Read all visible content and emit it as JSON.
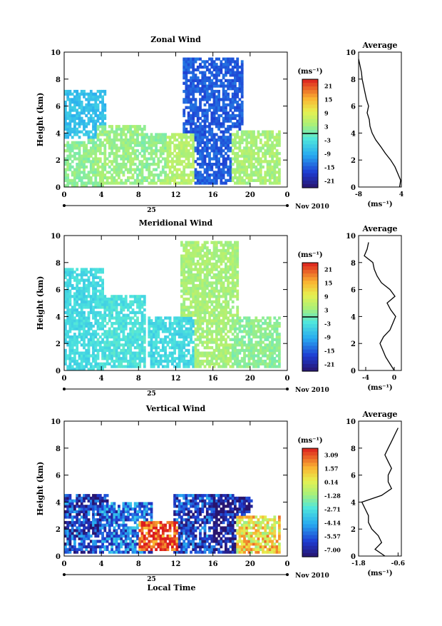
{
  "figure": {
    "xlabel": "Local Time",
    "date_label": "Nov 2010",
    "day_label": "25",
    "avg_title": "Average",
    "unit_label": "(ms⁻¹)",
    "ylabel": "Height (km)"
  },
  "chart_data": [
    {
      "type": "heatmap",
      "title": "Zonal Wind",
      "xlabel": "",
      "ylabel": "Height (km)",
      "xlim": [
        0,
        24
      ],
      "xticks": [
        "0",
        "4",
        "8",
        "12",
        "16",
        "20",
        "0"
      ],
      "ylim": [
        0,
        10
      ],
      "yticks": [
        "0",
        "2",
        "4",
        "6",
        "8",
        "10"
      ],
      "colorbar": {
        "label": "(ms⁻¹)",
        "ticks": [
          "21",
          "15",
          "9",
          "3",
          "-3",
          "-9",
          "-15",
          "-21"
        ],
        "range": [
          -24,
          24
        ],
        "zero_line": true
      },
      "description_points": [
        {
          "x": 1.0,
          "y0": 0.0,
          "y1": 3.3,
          "value": 2
        },
        {
          "x": 1.2,
          "y0": 3.5,
          "y1": 7.2,
          "value": -7
        },
        {
          "x": 5.5,
          "y0": 0.2,
          "y1": 4.5,
          "value": 3
        },
        {
          "x": 9.5,
          "y0": 0.3,
          "y1": 4.0,
          "value": 2
        },
        {
          "x": 12.0,
          "y0": 0.2,
          "y1": 4.0,
          "value": 5
        },
        {
          "x": 15.8,
          "y0": 0.2,
          "y1": 9.5,
          "value": -15
        },
        {
          "x": 20.0,
          "y0": 0.2,
          "y1": 4.2,
          "value": 4
        }
      ],
      "average_profile": {
        "xlim": [
          -8,
          4
        ],
        "xticks": [
          "-8",
          "4"
        ],
        "xlabel": "(ms⁻¹)",
        "height": [
          0.0,
          0.5,
          1.0,
          1.5,
          2.0,
          2.5,
          3.0,
          3.5,
          4.0,
          4.5,
          5.0,
          5.5,
          6.0,
          6.5,
          7.0,
          7.5,
          8.0,
          8.5,
          9.0,
          9.5
        ],
        "value": [
          3.5,
          3.8,
          3.0,
          2.2,
          1.0,
          -0.5,
          -1.8,
          -3.2,
          -4.2,
          -4.8,
          -5.0,
          -5.6,
          -5.2,
          -5.8,
          -6.2,
          -6.6,
          -7.0,
          -7.2,
          -7.6,
          -8.0
        ]
      }
    },
    {
      "type": "heatmap",
      "title": "Meridional Wind",
      "xlabel": "",
      "ylabel": "Height (km)",
      "xlim": [
        0,
        24
      ],
      "xticks": [
        "0",
        "4",
        "8",
        "12",
        "16",
        "20",
        "0"
      ],
      "ylim": [
        0,
        10
      ],
      "yticks": [
        "0",
        "2",
        "4",
        "6",
        "8",
        "10"
      ],
      "colorbar": {
        "label": "(ms⁻¹)",
        "ticks": [
          "21",
          "15",
          "9",
          "3",
          "-3",
          "-9",
          "-15",
          "-21"
        ],
        "range": [
          -24,
          24
        ],
        "zero_line": true
      },
      "description_points": [
        {
          "x": 1.0,
          "y0": 0.0,
          "y1": 7.5,
          "value": -4
        },
        {
          "x": 5.5,
          "y0": 0.1,
          "y1": 5.5,
          "value": -3
        },
        {
          "x": 12.0,
          "y0": 0.1,
          "y1": 4.0,
          "value": -4
        },
        {
          "x": 15.5,
          "y0": 0.1,
          "y1": 9.5,
          "value": 4
        },
        {
          "x": 20.0,
          "y0": 0.1,
          "y1": 4.0,
          "value": 2
        }
      ],
      "average_profile": {
        "xlim": [
          -5,
          1
        ],
        "xticks": [
          "-4",
          "0"
        ],
        "xlabel": "(ms⁻¹)",
        "height": [
          0.0,
          0.5,
          1.0,
          1.5,
          2.0,
          2.5,
          3.0,
          3.5,
          4.0,
          4.5,
          5.0,
          5.5,
          6.0,
          6.5,
          7.0,
          7.5,
          8.0,
          8.5,
          9.0,
          9.5
        ],
        "value": [
          0.0,
          -0.6,
          -1.2,
          -1.6,
          -2.0,
          -1.5,
          -0.6,
          -0.2,
          0.2,
          -0.5,
          -1.0,
          0.1,
          -0.6,
          -1.8,
          -2.4,
          -2.8,
          -3.0,
          -4.2,
          -3.8,
          -3.6
        ]
      }
    },
    {
      "type": "heatmap",
      "title": "Vertical Wind",
      "xlabel": "Local Time",
      "ylabel": "Height (km)",
      "xlim": [
        0,
        24
      ],
      "xticks": [
        "0",
        "4",
        "8",
        "12",
        "16",
        "20",
        "0"
      ],
      "ylim": [
        0,
        10
      ],
      "yticks": [
        "0",
        "2",
        "4",
        "6",
        "8",
        "10"
      ],
      "colorbar": {
        "label": "(ms⁻¹)",
        "ticks": [
          "3.09",
          "1.57",
          "0.14",
          "-1.28",
          "-2.71",
          "-4.14",
          "-5.57",
          "-7.00"
        ],
        "range": [
          -7.5,
          3.5
        ],
        "zero_line": false
      },
      "description_points": [
        {
          "x": 1.5,
          "y0": 0.1,
          "y1": 4.5,
          "value": -6
        },
        {
          "x": 6.2,
          "y0": 0.1,
          "y1": 4.0,
          "value": -5
        },
        {
          "x": 9.5,
          "y0": 0.3,
          "y1": 2.5,
          "value": 3
        },
        {
          "x": 14.8,
          "y0": 0.2,
          "y1": 4.5,
          "value": -6
        },
        {
          "x": 16.8,
          "y0": 0.2,
          "y1": 4.3,
          "value": -7
        },
        {
          "x": 20.0,
          "y0": 0.2,
          "y1": 3.0,
          "value": 0.5
        }
      ],
      "average_profile": {
        "xlim": [
          -1.8,
          -0.5
        ],
        "xticks": [
          "-1.8",
          "-0.6"
        ],
        "xlabel": "(ms⁻¹)",
        "height": [
          0.0,
          0.5,
          1.0,
          1.5,
          2.0,
          2.5,
          3.0,
          3.5,
          4.0,
          4.5,
          5.0,
          5.5,
          6.0,
          6.5,
          7.0,
          7.5,
          8.0,
          8.5,
          9.0,
          9.5
        ],
        "value": [
          -1.0,
          -1.3,
          -1.1,
          -1.2,
          -1.4,
          -1.5,
          -1.5,
          -1.6,
          -1.7,
          -1.1,
          -0.8,
          -0.9,
          -0.9,
          -0.8,
          -0.9,
          -1.0,
          -0.9,
          -0.8,
          -0.7,
          -0.6
        ]
      }
    }
  ]
}
